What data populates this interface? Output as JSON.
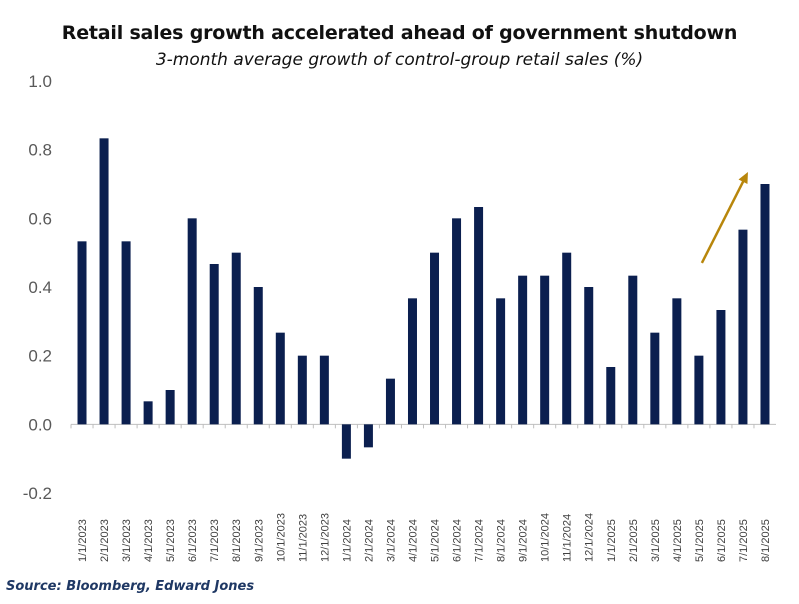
{
  "chart_data": {
    "type": "bar",
    "title": "Retail sales growth accelerated ahead of government shutdown",
    "subtitle": "3-month average growth of control-group retail sales (%)",
    "xlabel": "",
    "ylabel": "",
    "ylim": [
      -0.2,
      1.0
    ],
    "y_ticks": [
      "1.0",
      "0.8",
      "0.6",
      "0.4",
      "0.2",
      "0.0",
      "-0.2"
    ],
    "categories": [
      "1/1/2023",
      "2/1/2023",
      "3/1/2023",
      "4/1/2023",
      "5/1/2023",
      "6/1/2023",
      "7/1/2023",
      "8/1/2023",
      "9/1/2023",
      "10/1/2023",
      "11/1/2023",
      "12/1/2023",
      "1/1/2024",
      "2/1/2024",
      "3/1/2024",
      "4/1/2024",
      "5/1/2024",
      "6/1/2024",
      "7/1/2024",
      "8/1/2024",
      "9/1/2024",
      "10/1/2024",
      "11/1/2024",
      "12/1/2024",
      "1/1/2025",
      "2/1/2025",
      "3/1/2025",
      "4/1/2025",
      "5/1/2025",
      "6/1/2025",
      "7/1/2025",
      "8/1/2025"
    ],
    "values": [
      0.533,
      0.833,
      0.533,
      0.067,
      0.1,
      0.6,
      0.467,
      0.5,
      0.4,
      0.267,
      0.2,
      0.2,
      -0.1,
      -0.067,
      0.133,
      0.367,
      0.5,
      0.6,
      0.633,
      0.367,
      0.433,
      0.433,
      0.5,
      0.4,
      0.167,
      0.433,
      0.267,
      0.367,
      0.2,
      0.333,
      0.567,
      0.7
    ],
    "bar_color": "#0b1f4f",
    "annotation": {
      "type": "arrow",
      "direction": "up-right",
      "near": "6/1/2025 to 7/1/2025",
      "color": "#b8860b"
    },
    "grid": false,
    "legend": "none"
  },
  "source": "Source: Bloomberg, Edward Jones"
}
